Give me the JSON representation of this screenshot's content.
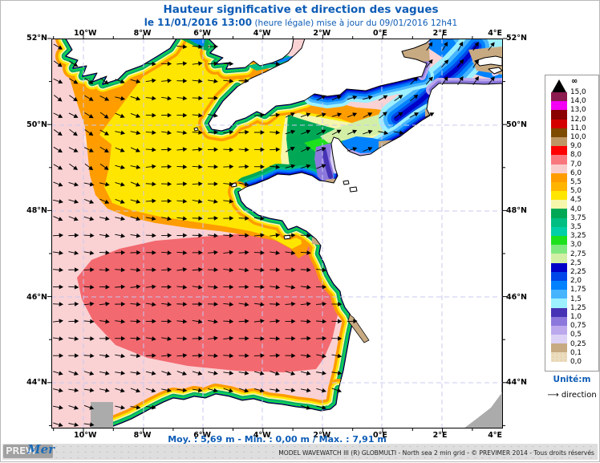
{
  "title": "Hauteur significative et direction des vagues",
  "subtitle": {
    "date": "le 11/01/2016 13:00",
    "rest": " (heure légale) mise à jour du 09/01/2016 12h41"
  },
  "axes": {
    "lon_labels": [
      "10°W",
      "8°W",
      "6°W",
      "4°W",
      "2°W",
      "0°E",
      "2°E",
      "4°E"
    ],
    "lat_labels": [
      "52°N",
      "50°N",
      "48°N",
      "46°N",
      "44°N"
    ]
  },
  "legend": {
    "infinity": "∞",
    "labels": [
      "15,0",
      "14,0",
      "13,0",
      "12,0",
      "11,0",
      "10,0",
      "9,0",
      "8,0",
      "7,0",
      "6,0",
      "5,5",
      "5,0",
      "4,5",
      "4,0",
      "3,75",
      "3,5",
      "3,25",
      "3,0",
      "2,75",
      "2,5",
      "2,25",
      "2,0",
      "1,75",
      "1,5",
      "1,25",
      "1,0",
      "0,75",
      "0,5",
      "0,25",
      "0,1",
      "0,0"
    ],
    "colors": [
      "#8B1A4E",
      "#F400F4",
      "#8B0000",
      "#D40000",
      "#7D4A00",
      "#BE9663",
      "#FF0000",
      "#F8787E",
      "#FACDCD",
      "#FF9C00",
      "#FFB400",
      "#FFE600",
      "#F6F6AC",
      "#00A855",
      "#00BE82",
      "#00CFA8",
      "#1EE11E",
      "#7FE87F",
      "#D2EFA5",
      "#0000C8",
      "#0046E8",
      "#0082FF",
      "#46B4FF",
      "#9CF0FF",
      "#4632B4",
      "#8C78DC",
      "#BCA8EC",
      "#DCD2F5",
      "#C8AA82",
      "#EBDCBE"
    ],
    "unit": "Unité:m",
    "direction_arrow": "⟶",
    "direction": "direction"
  },
  "stats_line": "Moy. : 5,69 m  -  Min. : 0,00 m / Max. : 7,91 m",
  "logo": {
    "prefix": "PREVi",
    "suffix": "Mer"
  },
  "footer_credit": "MODEL WAVEWATCH III (R) GLOBMULTI - North sea 2 min grid - © PREVIMER 2014 - Tous droits réservés",
  "accent_color": "#0d5cb6"
}
